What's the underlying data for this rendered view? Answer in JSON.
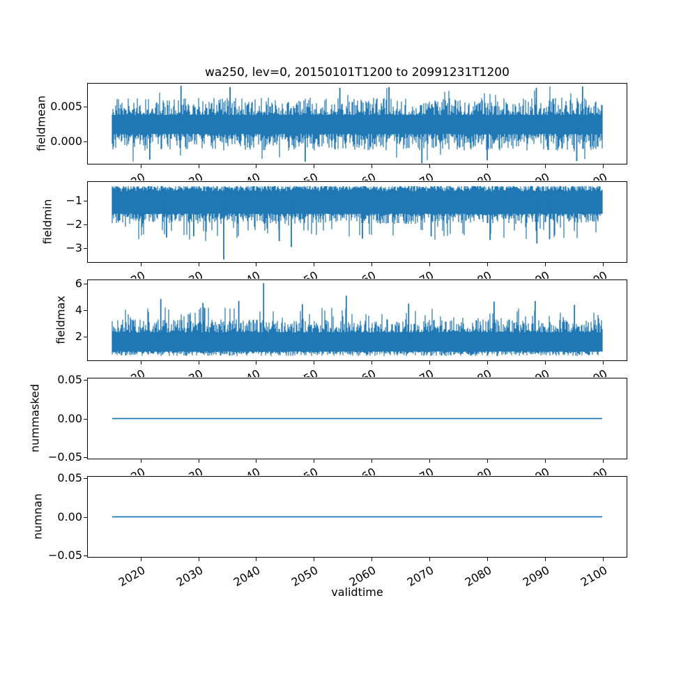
{
  "figure": {
    "title": "wa250, lev=0, 20150101T1200 to 20991231T1200",
    "background": "#ffffff",
    "line_color": "#1f77b4",
    "spine_color": "#000000",
    "text_color": "#000000"
  },
  "xaxis": {
    "label": "validtime",
    "ticks": [
      "2020",
      "2030",
      "2040",
      "2050",
      "2060",
      "2070",
      "2080",
      "2090",
      "2100"
    ],
    "tick_values": [
      2020,
      2030,
      2040,
      2050,
      2060,
      2070,
      2080,
      2090,
      2100
    ],
    "lim": [
      2010.75,
      2104.25
    ],
    "data_start": 2015.0,
    "data_end": 2100.0,
    "tick_rotation_deg": 30
  },
  "chart_data": [
    {
      "type": "line",
      "name": "fieldmean",
      "ylabel": "fieldmean",
      "ytick_labels": [
        "0.005",
        "0.000"
      ],
      "ytick_values": [
        0.005,
        0.0
      ],
      "ylim": [
        -0.0033,
        0.0084
      ],
      "grid": false,
      "series": [
        {
          "name": "fieldmean",
          "style": "noise",
          "color": "#1f77b4",
          "mean": 0.0025,
          "band_top": [
            0.0038,
            0.0063
          ],
          "band_bottom": [
            0.0011,
            -0.0013
          ],
          "spike_up": {
            "prob": 0.02,
            "to": 0.0079
          },
          "spike_down": {
            "prob": 0.02,
            "to": -0.0029
          },
          "extremes": [
            [
              2027.0,
              0.008
            ],
            [
              2035.5,
              0.0078
            ],
            [
              2054.5,
              0.0077
            ],
            [
              2063.0,
              0.0078
            ],
            [
              2088.5,
              0.0077
            ],
            [
              2096.5,
              0.0079
            ],
            [
              2048.5,
              -0.0029
            ],
            [
              2068.7,
              -0.0031
            ],
            [
              2080.0,
              -0.0027
            ],
            [
              2021.6,
              -0.0026
            ],
            [
              2095.5,
              -0.0028
            ]
          ]
        }
      ]
    },
    {
      "type": "line",
      "name": "fieldmin",
      "ylabel": "fieldmin",
      "ytick_labels": [
        "−1",
        "−2",
        "−3"
      ],
      "ytick_values": [
        -1,
        -2,
        -3
      ],
      "ylim": [
        -3.605,
        -0.195
      ],
      "grid": false,
      "series": [
        {
          "name": "fieldmin",
          "style": "noise",
          "color": "#1f77b4",
          "mean": -1.0,
          "band_top": [
            -0.4,
            -0.62
          ],
          "band_bottom": [
            -1.55,
            -1.98
          ],
          "spike_up": {
            "prob": 0.0,
            "to": -0.38
          },
          "spike_down": {
            "prob": 0.1,
            "to": -2.7
          },
          "extremes": [
            [
              2034.4,
              -3.47
            ],
            [
              2046.1,
              -2.95
            ],
            [
              2029.2,
              -2.5
            ],
            [
              2044.0,
              -2.7
            ],
            [
              2058.4,
              -2.6
            ],
            [
              2080.5,
              -2.65
            ],
            [
              2088.6,
              -2.8
            ],
            [
              2090.8,
              -2.62
            ],
            [
              2024.5,
              -2.55
            ],
            [
              2070.3,
              -2.5
            ]
          ]
        }
      ]
    },
    {
      "type": "line",
      "name": "fieldmax",
      "ylabel": "fieldmax",
      "ytick_labels": [
        "6",
        "4",
        "2"
      ],
      "ytick_values": [
        6,
        4,
        2
      ],
      "ylim": [
        0.1175,
        6.3325
      ],
      "grid": false,
      "series": [
        {
          "name": "fieldmax",
          "style": "noise",
          "color": "#1f77b4",
          "mean": 1.6,
          "band_top": [
            2.3,
            3.3
          ],
          "band_bottom": [
            0.85,
            0.5
          ],
          "spike_up": {
            "prob": 0.1,
            "to": 4.2
          },
          "spike_down": {
            "prob": 0.0,
            "to": 0.5
          },
          "extremes": [
            [
              2041.3,
              6.05
            ],
            [
              2055.6,
              5.1
            ],
            [
              2023.5,
              4.85
            ],
            [
              2037.0,
              4.7
            ],
            [
              2081.2,
              4.65
            ],
            [
              2088.3,
              4.7
            ],
            [
              2066.4,
              4.5
            ],
            [
              2095.1,
              4.4
            ],
            [
              2030.8,
              4.55
            ],
            [
              2048.0,
              4.45
            ]
          ]
        }
      ]
    },
    {
      "type": "line",
      "name": "nummasked",
      "ylabel": "nummasked",
      "ytick_labels": [
        "0.05",
        "0.00",
        "−0.05"
      ],
      "ytick_values": [
        0.05,
        0.0,
        -0.05
      ],
      "ylim": [
        -0.0525,
        0.0525
      ],
      "grid": false,
      "series": [
        {
          "name": "nummasked",
          "style": "flat",
          "color": "#1f77b4",
          "value": 0.0
        }
      ]
    },
    {
      "type": "line",
      "name": "numnan",
      "ylabel": "numnan",
      "ytick_labels": [
        "0.05",
        "0.00",
        "−0.05"
      ],
      "ytick_values": [
        0.05,
        0.0,
        -0.05
      ],
      "ylim": [
        -0.0525,
        0.0525
      ],
      "grid": false,
      "series": [
        {
          "name": "numnan",
          "style": "flat",
          "color": "#1f77b4",
          "value": 0.0
        }
      ]
    }
  ]
}
